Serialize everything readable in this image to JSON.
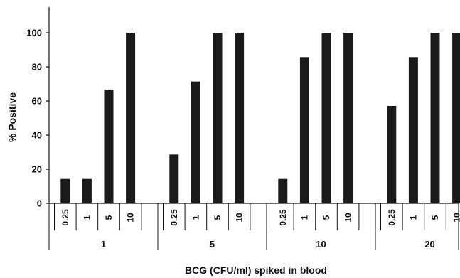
{
  "chart_data": {
    "type": "bar",
    "title": "",
    "xlabel": "BCG (CFU/ml) spiked in blood",
    "ylabel": "% Positive",
    "ylim": [
      0,
      115
    ],
    "yticks": [
      0,
      20,
      40,
      60,
      80,
      100
    ],
    "grid": false,
    "legend": "none",
    "bar_color": "#1a1a1a",
    "groups": [
      {
        "label": "1",
        "categories": [
          "0.25",
          "1",
          "5",
          "10"
        ],
        "values": [
          14.3,
          14.3,
          66.7,
          100
        ]
      },
      {
        "label": "5",
        "categories": [
          "0.25",
          "1",
          "5",
          "10"
        ],
        "values": [
          28.6,
          71.4,
          100,
          100
        ]
      },
      {
        "label": "10",
        "categories": [
          "0.25",
          "1",
          "5",
          "10"
        ],
        "values": [
          14.3,
          85.7,
          100,
          100
        ]
      },
      {
        "label": "20",
        "categories": [
          "0.25",
          "1",
          "5",
          "10"
        ],
        "values": [
          57.1,
          85.7,
          100,
          100
        ]
      }
    ]
  }
}
